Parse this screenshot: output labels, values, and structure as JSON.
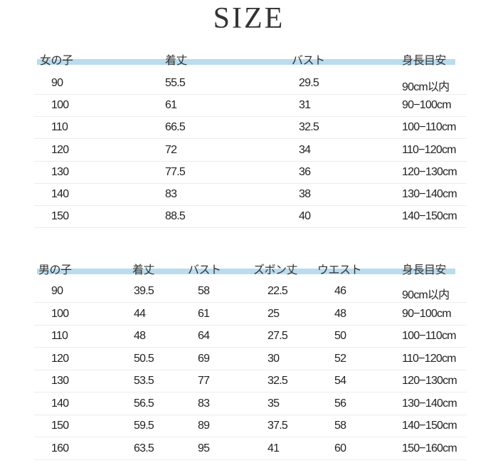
{
  "title": "SIZE",
  "band_color": "#b9dcee",
  "girls": {
    "headers": [
      "女の子",
      "着丈",
      "バスト",
      "身長目安"
    ],
    "rows": [
      [
        "90",
        "55.5",
        "29.5",
        "90cm以内"
      ],
      [
        "100",
        "61",
        "31",
        "90−100cm"
      ],
      [
        "110",
        "66.5",
        "32.5",
        "100−110cm"
      ],
      [
        "120",
        "72",
        "34",
        "110−120cm"
      ],
      [
        "130",
        "77.5",
        "36",
        "120−130cm"
      ],
      [
        "140",
        "83",
        "38",
        "130−140cm"
      ],
      [
        "150",
        "88.5",
        "40",
        "140−150cm"
      ]
    ]
  },
  "boys": {
    "headers": [
      "男の子",
      "着丈",
      "バスト",
      "ズボン丈",
      "ウエスト",
      "身長目安"
    ],
    "rows": [
      [
        "90",
        "39.5",
        "58",
        "22.5",
        "46",
        "90cm以内"
      ],
      [
        "100",
        "44",
        "61",
        "25",
        "48",
        "90−100cm"
      ],
      [
        "110",
        "48",
        "64",
        "27.5",
        "50",
        "100−110cm"
      ],
      [
        "120",
        "50.5",
        "69",
        "30",
        "52",
        "110−120cm"
      ],
      [
        "130",
        "53.5",
        "77",
        "32.5",
        "54",
        "120−130cm"
      ],
      [
        "140",
        "56.5",
        "83",
        "35",
        "56",
        "130−140cm"
      ],
      [
        "150",
        "59.5",
        "89",
        "37.5",
        "58",
        "140−150cm"
      ],
      [
        "160",
        "63.5",
        "95",
        "41",
        "60",
        "150−160cm"
      ]
    ]
  }
}
